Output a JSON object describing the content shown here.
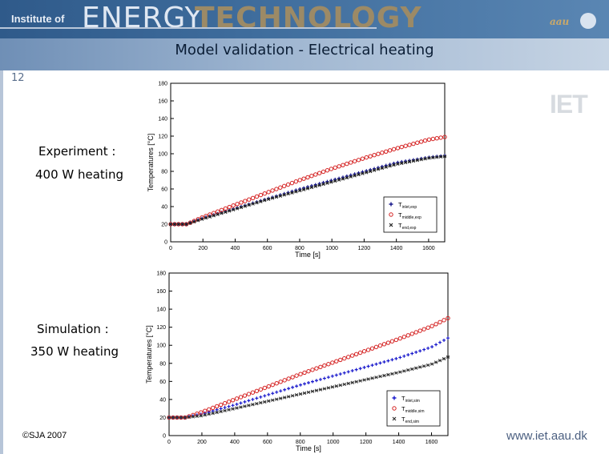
{
  "header": {
    "institute": "Institute of",
    "energy": "ENERGY",
    "technology": "TECHNOLOGY",
    "aau": "aau"
  },
  "slide": {
    "title": "Model validation - Electrical heating",
    "page_number": "12"
  },
  "labels": {
    "experiment_1": "Experiment :",
    "experiment_2": "400 W heating",
    "simulation_1": "Simulation :",
    "simulation_2": "350 W heating"
  },
  "footer": {
    "copyright": "©SJA 2007",
    "website": "www.iet.aau.dk"
  },
  "logo": {
    "iet": "IET"
  },
  "chart_data": [
    {
      "type": "scatter",
      "xlabel": "Time [s]",
      "ylabel": "Temperatures [°C]",
      "xlim": [
        0,
        1700
      ],
      "ylim": [
        0,
        180
      ],
      "x_ticks": [
        0,
        200,
        400,
        600,
        800,
        1000,
        1200,
        1400,
        1600
      ],
      "y_ticks": [
        0,
        20,
        40,
        60,
        80,
        100,
        120,
        140,
        160,
        180
      ],
      "y_tick_labels": [
        "0",
        "20",
        "40",
        "60",
        "80",
        "100",
        "120",
        "140",
        "160",
        "180"
      ],
      "legend": "bottom-right",
      "series": [
        {
          "name": "T inlet,exp",
          "marker": "plus",
          "color": "#1a1a8c",
          "x": [
            0,
            100,
            200,
            400,
            600,
            800,
            1000,
            1200,
            1400,
            1600,
            1700
          ],
          "y": [
            20,
            20,
            27,
            38,
            49,
            60,
            70,
            80,
            90,
            96,
            98
          ]
        },
        {
          "name": "T middle,exp",
          "marker": "circle",
          "color": "#d42020",
          "x": [
            0,
            100,
            200,
            400,
            600,
            800,
            1000,
            1200,
            1400,
            1600,
            1700
          ],
          "y": [
            20,
            20,
            28,
            42,
            56,
            70,
            83,
            95,
            106,
            116,
            119
          ]
        },
        {
          "name": "T end,exp",
          "marker": "star",
          "color": "#222222",
          "x": [
            0,
            100,
            200,
            400,
            600,
            800,
            1000,
            1200,
            1400,
            1600,
            1700
          ],
          "y": [
            20,
            20,
            26,
            37,
            48,
            58,
            68,
            78,
            88,
            95,
            97
          ]
        }
      ]
    },
    {
      "type": "scatter",
      "xlabel": "Time [s]",
      "ylabel": "Temperatures [°C]",
      "xlim": [
        0,
        1700
      ],
      "ylim": [
        0,
        180
      ],
      "x_ticks": [
        0,
        200,
        400,
        600,
        800,
        1000,
        1200,
        1400,
        1600
      ],
      "y_ticks": [
        0,
        20,
        40,
        60,
        80,
        100,
        120,
        140,
        160,
        180
      ],
      "y_tick_labels": [
        "0",
        "20",
        "40",
        "60",
        "80",
        "100",
        "120",
        "140",
        "160",
        "180"
      ],
      "legend": "bottom-right",
      "series": [
        {
          "name": "T inlet,sim",
          "marker": "plus",
          "color": "#1a1acc",
          "x": [
            0,
            100,
            200,
            400,
            600,
            800,
            1000,
            1200,
            1400,
            1600,
            1700
          ],
          "y": [
            20,
            20,
            24,
            34,
            45,
            56,
            66,
            76,
            86,
            98,
            108
          ]
        },
        {
          "name": "T middle,sim",
          "marker": "circle",
          "color": "#d42020",
          "x": [
            0,
            100,
            200,
            400,
            600,
            800,
            1000,
            1200,
            1400,
            1600,
            1700
          ],
          "y": [
            20,
            20,
            26,
            40,
            54,
            68,
            81,
            94,
            107,
            121,
            130
          ]
        },
        {
          "name": "T end,sim",
          "marker": "star",
          "color": "#333333",
          "x": [
            0,
            100,
            200,
            400,
            600,
            800,
            1000,
            1200,
            1400,
            1600,
            1700
          ],
          "y": [
            20,
            20,
            22,
            30,
            38,
            46,
            54,
            62,
            70,
            79,
            87
          ]
        }
      ]
    }
  ]
}
